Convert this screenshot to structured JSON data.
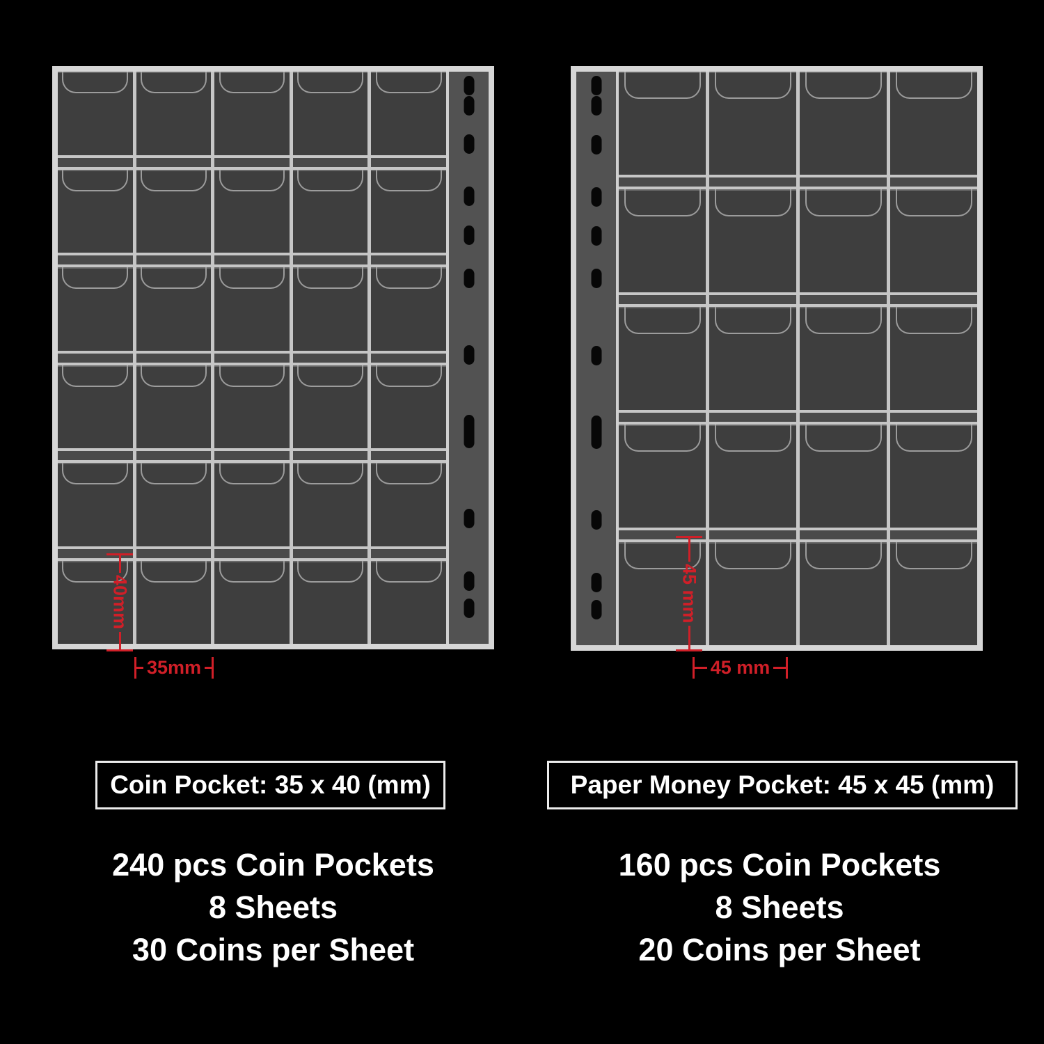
{
  "background": "#000000",
  "annotation_color": "#d01f28",
  "text_color": "#ffffff",
  "left_panel": {
    "sheet": {
      "rows": 6,
      "columns": 5,
      "pocket_count": 30,
      "holes_side": "right"
    },
    "dim_height_label": "40mm",
    "dim_width_label": "35mm",
    "spec_title": "Coin Pocket: 35 x 40 (mm)",
    "spec_lines": [
      "240 pcs Coin Pockets",
      "8 Sheets",
      "30 Coins per Sheet"
    ]
  },
  "right_panel": {
    "sheet": {
      "rows": 5,
      "columns": 4,
      "pocket_count": 20,
      "holes_side": "left"
    },
    "dim_height_label": "45 mm",
    "dim_width_label": "45 mm",
    "spec_title": "Paper Money Pocket: 45 x 45 (mm)",
    "spec_lines": [
      "160 pcs Coin Pockets",
      "8 Sheets",
      "20 Coins per Sheet"
    ]
  }
}
